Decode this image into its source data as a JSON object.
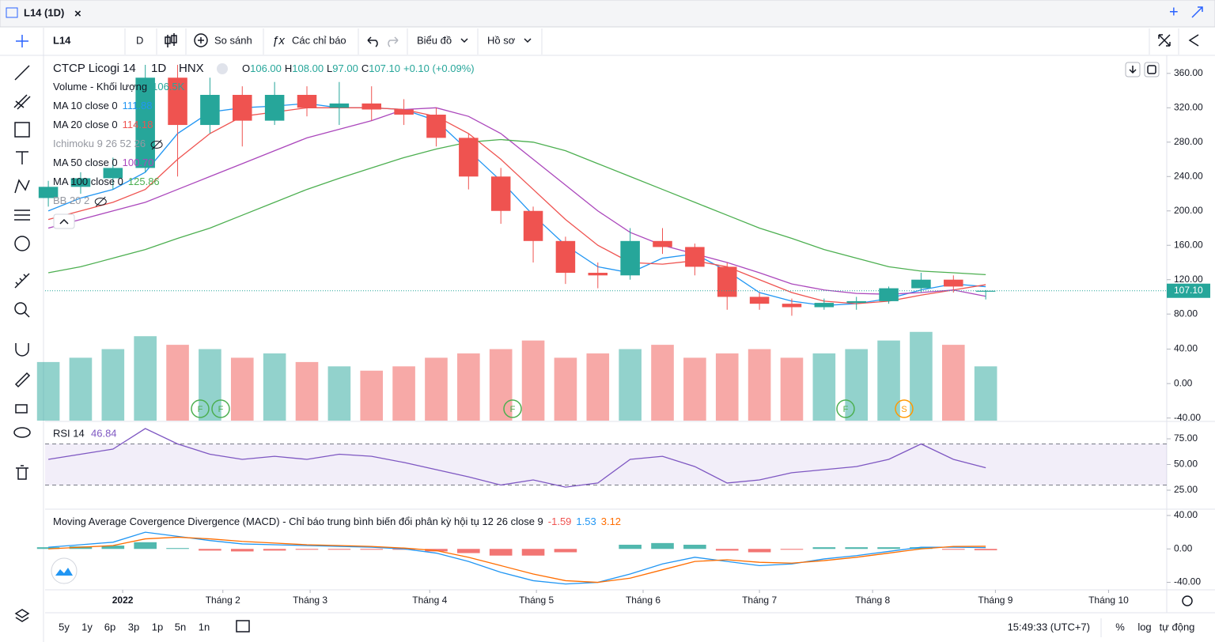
{
  "tab": {
    "title": "L14 (1D)"
  },
  "toolbar": {
    "symbol": "L14",
    "interval": "D",
    "compare": "So sánh",
    "indicators": "Các chỉ báo",
    "chart_menu": "Biểu đồ",
    "profile_menu": "Hồ sơ"
  },
  "legend": {
    "title": "CTCP Licogi 14",
    "interval": "1D",
    "exchange": "HNX",
    "ohlc": [
      {
        "key": "O",
        "value": "106.00"
      },
      {
        "key": "H",
        "value": "108.00"
      },
      {
        "key": "L",
        "value": "97.00"
      },
      {
        "key": "C",
        "value": "107.10"
      }
    ],
    "change": "+0.10 (+0.09%)",
    "indicators": [
      {
        "name": "Volume - Khối lượng",
        "value": "106.5K",
        "color": "#26a69a"
      },
      {
        "name": "MA 10 close 0",
        "value": "111.88",
        "color": "#2196f3"
      },
      {
        "name": "MA 20 close 0",
        "value": "114.18",
        "color": "#ef5350"
      },
      {
        "name": "Ichimoku 9 26 52 26",
        "color": "#9598a1"
      },
      {
        "name": "MA 50 close 0",
        "value": "100.70",
        "color": "#ab47bc"
      },
      {
        "name": "MA 100 close 0",
        "value": "125.86",
        "color": "#4caf50"
      },
      {
        "name": "BB 20 2",
        "color": "#9598a1"
      }
    ]
  },
  "chart_data": {
    "type": "candlestick",
    "up_color": "#26a69a",
    "down_color": "#ef5350",
    "xlim": [
      -0.1,
      34.6
    ],
    "xticks": [
      {
        "value": 2.3,
        "label": "2022"
      },
      {
        "value": 5.4,
        "label": "Tháng 2"
      },
      {
        "value": 8.1,
        "label": "Tháng 3"
      },
      {
        "value": 11.8,
        "label": "Tháng 4"
      },
      {
        "value": 15.1,
        "label": "Tháng 5"
      },
      {
        "value": 18.4,
        "label": "Tháng 6"
      },
      {
        "value": 22.0,
        "label": "Tháng 7"
      },
      {
        "value": 25.5,
        "label": "Tháng 8"
      },
      {
        "value": 29.3,
        "label": "Tháng 9"
      },
      {
        "value": 32.8,
        "label": "Tháng 10"
      }
    ],
    "ylim": [
      -44,
      381
    ],
    "yticks": [
      {
        "value": 80,
        "label": "80.00"
      },
      {
        "value": 120,
        "label": "120.00"
      },
      {
        "value": 160,
        "label": "160.00"
      },
      {
        "value": 200,
        "label": "200.00"
      },
      {
        "value": 240,
        "label": "240.00"
      },
      {
        "value": 280,
        "label": "280.00"
      },
      {
        "value": 320,
        "label": "320.00"
      },
      {
        "value": 360,
        "label": "360.00"
      }
    ],
    "last_label": "107.10",
    "ohlc": [
      [
        215,
        235,
        205,
        228
      ],
      [
        228,
        245,
        220,
        238
      ],
      [
        238,
        262,
        225,
        250
      ],
      [
        250,
        370,
        245,
        355
      ],
      [
        355,
        370,
        240,
        300
      ],
      [
        300,
        355,
        290,
        335
      ],
      [
        335,
        345,
        275,
        305
      ],
      [
        305,
        350,
        300,
        335
      ],
      [
        335,
        345,
        310,
        320
      ],
      [
        320,
        350,
        300,
        325
      ],
      [
        325,
        345,
        305,
        318
      ],
      [
        318,
        330,
        300,
        312
      ],
      [
        312,
        320,
        275,
        285
      ],
      [
        285,
        290,
        225,
        240
      ],
      [
        240,
        250,
        185,
        200
      ],
      [
        200,
        205,
        140,
        165
      ],
      [
        165,
        170,
        115,
        128
      ],
      [
        128,
        140,
        110,
        125
      ],
      [
        125,
        180,
        120,
        165
      ],
      [
        165,
        180,
        150,
        158
      ],
      [
        158,
        162,
        125,
        135
      ],
      [
        135,
        140,
        85,
        100
      ],
      [
        100,
        105,
        85,
        92
      ],
      [
        92,
        98,
        78,
        88
      ],
      [
        88,
        98,
        85,
        93
      ],
      [
        93,
        100,
        85,
        95
      ],
      [
        95,
        112,
        92,
        110
      ],
      [
        110,
        128,
        105,
        120
      ],
      [
        120,
        125,
        105,
        112
      ],
      [
        106,
        108,
        97,
        107.1
      ]
    ],
    "series": [
      {
        "name": "MA 10",
        "color": "#2196f3",
        "values": [
          200,
          215,
          225,
          245,
          290,
          315,
          320,
          322,
          325,
          320,
          320,
          318,
          305,
          270,
          235,
          195,
          160,
          135,
          128,
          145,
          150,
          130,
          105,
          95,
          90,
          92,
          98,
          108,
          115,
          111.88
        ]
      },
      {
        "name": "MA 20",
        "color": "#ef5350",
        "values": [
          190,
          200,
          210,
          225,
          260,
          290,
          310,
          315,
          320,
          320,
          320,
          318,
          310,
          290,
          260,
          225,
          190,
          160,
          140,
          138,
          142,
          135,
          120,
          105,
          95,
          92,
          95,
          102,
          108,
          114.18
        ]
      },
      {
        "name": "MA 50",
        "color": "#ab47bc",
        "values": [
          180,
          190,
          200,
          210,
          225,
          240,
          255,
          270,
          285,
          295,
          305,
          318,
          320,
          310,
          290,
          260,
          230,
          200,
          175,
          160,
          150,
          140,
          128,
          115,
          108,
          104,
          103,
          105,
          108,
          100.7
        ]
      },
      {
        "name": "MA 100",
        "color": "#4caf50",
        "values": [
          128,
          135,
          145,
          155,
          168,
          180,
          195,
          210,
          225,
          238,
          250,
          262,
          272,
          280,
          283,
          280,
          270,
          255,
          240,
          225,
          210,
          195,
          180,
          168,
          155,
          145,
          135,
          130,
          128,
          125.86
        ]
      }
    ],
    "volume": {
      "ylim": [
        -43,
        381
      ],
      "yticks": [
        {
          "value": -40,
          "label": "-40.00"
        },
        {
          "value": 0,
          "label": "0.00"
        },
        {
          "value": 40,
          "label": "40.00"
        }
      ],
      "values": [
        25,
        30,
        40,
        55,
        45,
        40,
        30,
        35,
        25,
        20,
        15,
        20,
        30,
        35,
        40,
        50,
        30,
        35,
        40,
        45,
        30,
        35,
        40,
        30,
        35,
        40,
        50,
        60,
        45,
        20
      ]
    },
    "events": [
      "F",
      "F",
      "F",
      "F",
      "S"
    ],
    "rsi": {
      "title": "RSI 14",
      "value": "46.84",
      "color": "#7e57c2",
      "ylim": [
        7.3,
        90.4
      ],
      "bands": [
        30,
        70
      ],
      "yticks": [
        {
          "value": 25,
          "label": "25.00"
        },
        {
          "value": 50,
          "label": "50.00"
        },
        {
          "value": 75,
          "label": "75.00"
        }
      ],
      "values": [
        55,
        60,
        65,
        85,
        70,
        60,
        55,
        58,
        55,
        60,
        58,
        52,
        45,
        38,
        30,
        35,
        28,
        32,
        55,
        58,
        48,
        32,
        35,
        42,
        45,
        48,
        55,
        70,
        55,
        46.84
      ]
    },
    "macd": {
      "title": "Moving Average Covergence Divergence (MACD) - Chỉ báo trung bình biến đổi phân kỳ hội tụ 12 26 close 9",
      "hist_label": "-1.59",
      "macd_label": "1.53",
      "signal_label": "3.12",
      "ylim": [
        -48,
        46.6
      ],
      "yticks": [
        {
          "value": -40,
          "label": "-40.00"
        },
        {
          "value": 0,
          "label": "0.00"
        },
        {
          "value": 40,
          "label": "40.00"
        }
      ],
      "macd_color": "#2196f3",
      "signal_color": "#ff6d00",
      "macd": [
        2,
        5,
        8,
        20,
        15,
        10,
        6,
        5,
        4,
        3,
        2,
        0,
        -5,
        -15,
        -28,
        -38,
        -42,
        -40,
        -30,
        -18,
        -10,
        -15,
        -20,
        -18,
        -12,
        -8,
        -3,
        2,
        2,
        1.53
      ],
      "signal": [
        0,
        2,
        4,
        12,
        14,
        12,
        9,
        7,
        5,
        4,
        3,
        1,
        -2,
        -10,
        -20,
        -30,
        -38,
        -40,
        -35,
        -25,
        -15,
        -13,
        -16,
        -17,
        -14,
        -10,
        -5,
        0,
        3,
        3.12
      ],
      "histogram": [
        2,
        3,
        4,
        8,
        1,
        -2,
        -3,
        -2,
        -1,
        -1,
        -1,
        -1,
        -3,
        -5,
        -8,
        -8,
        -4,
        0,
        5,
        7,
        5,
        -2,
        -4,
        -1,
        2,
        2,
        2,
        2,
        -1,
        -1.59
      ]
    }
  },
  "footer": {
    "ranges": [
      "5y",
      "1y",
      "6p",
      "3p",
      "1p",
      "5n",
      "1n"
    ],
    "time": "15:49:33 (UTC+7)",
    "percent": "%",
    "log": "log",
    "auto": "tự động"
  }
}
